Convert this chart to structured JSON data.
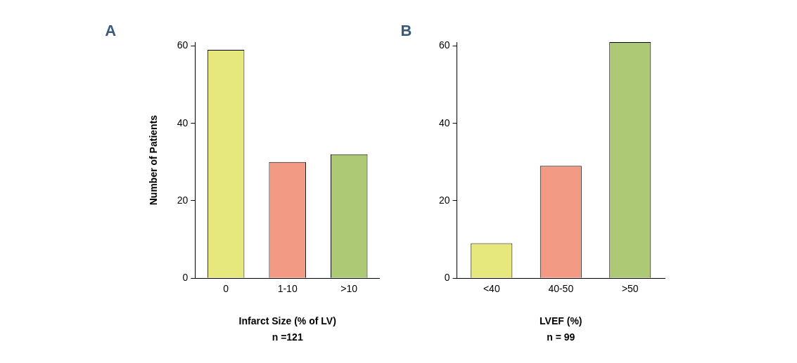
{
  "chart_data": [
    {
      "type": "bar",
      "title": "A",
      "xlabel": "Infarct Size (% of LV)",
      "ylabel": "Number of Patients",
      "annotations": [
        "n =121"
      ],
      "categories": [
        "0",
        "1-10",
        ">10"
      ],
      "values": [
        59,
        30,
        32
      ],
      "colors": [
        "#e6e87e",
        "#f29a84",
        "#adc976"
      ],
      "ylim": [
        0,
        61
      ],
      "yticks": [
        0,
        20,
        40,
        60
      ]
    },
    {
      "type": "bar",
      "title": "B",
      "xlabel": "LVEF (%)",
      "annotations": [
        "n = 99"
      ],
      "categories": [
        "<40",
        "40-50",
        ">50"
      ],
      "values": [
        9,
        29,
        61
      ],
      "colors": [
        "#e6e87e",
        "#f29a84",
        "#adc976"
      ],
      "ylim": [
        0,
        61
      ],
      "yticks": [
        0,
        20,
        40,
        60
      ]
    }
  ]
}
